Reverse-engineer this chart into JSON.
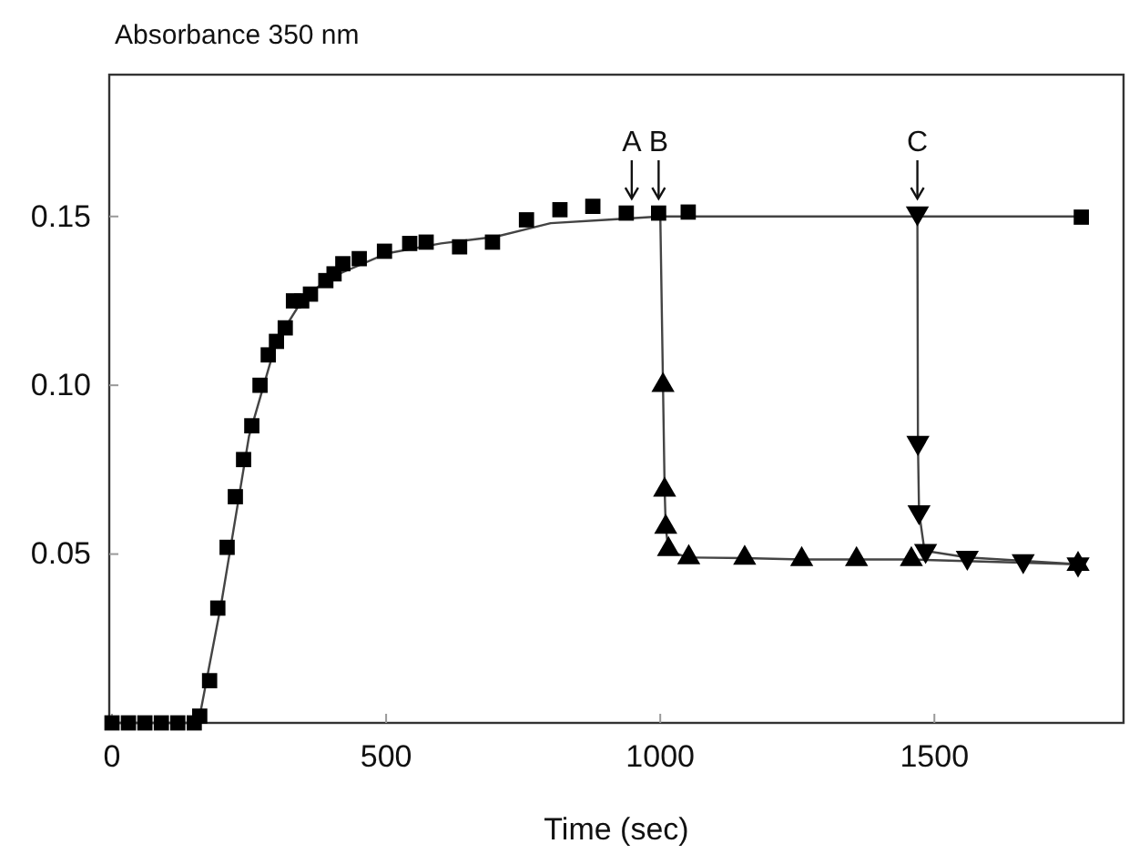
{
  "chart_data": {
    "type": "scatter",
    "ylabel": "Absorbance 350 nm",
    "xlabel": "Time (sec)",
    "xlim": [
      -5,
      1845
    ],
    "ylim": [
      0,
      0.192
    ],
    "xticks": [
      0,
      500,
      1000,
      1500
    ],
    "yticks": [
      {
        "value": 0,
        "label": null
      },
      0.05,
      {
        "value": 0.1,
        "label": "0.10"
      },
      0.15
    ],
    "grid": false,
    "series": [
      {
        "type": "line",
        "color": "#444444",
        "marker": "none",
        "line_style": "solid",
        "x": [
          0,
          150,
          160,
          200,
          250,
          300,
          350,
          400,
          500,
          600,
          700,
          800,
          900,
          1000,
          1768
        ],
        "values": [
          0,
          0,
          0.002,
          0.036,
          0.085,
          0.113,
          0.126,
          0.132,
          0.139,
          0.142,
          0.144,
          0.148,
          0.149,
          0.15,
          0.15
        ]
      },
      {
        "type": "line",
        "color": "#444444",
        "marker": "none",
        "line_style": "solid",
        "x": [
          1000,
          1005,
          1008,
          1010,
          1015,
          1050,
          1154,
          1258,
          1358,
          1458,
          1762
        ],
        "values": [
          0.151,
          0.1,
          0.069,
          0.058,
          0.051,
          0.049,
          0.0488,
          0.0484,
          0.0484,
          0.0484,
          0.047
        ]
      },
      {
        "type": "line",
        "color": "#444444",
        "marker": "none",
        "line_style": "solid",
        "x": [
          1469,
          1470,
          1472,
          1482,
          1560,
          1662,
          1762
        ],
        "values": [
          0.151,
          0.083,
          0.0625,
          0.051,
          0.049,
          0.048,
          0.047
        ]
      },
      {
        "color": "#000000",
        "marker": "square",
        "x": [
          0,
          30,
          60,
          90,
          120,
          150,
          160,
          178,
          193,
          210,
          225,
          240,
          255,
          270,
          285,
          300,
          316,
          331,
          346,
          362,
          390,
          405,
          421,
          451,
          497,
          543,
          573,
          634,
          694,
          756,
          817,
          877,
          938,
          997,
          1051,
          1768
        ],
        "values": [
          0,
          0,
          0,
          0,
          0,
          0,
          0.002,
          0.0125,
          0.034,
          0.052,
          0.067,
          0.078,
          0.088,
          0.1,
          0.109,
          0.113,
          0.117,
          0.125,
          0.125,
          0.127,
          0.131,
          0.133,
          0.136,
          0.1375,
          0.1397,
          0.142,
          0.1424,
          0.141,
          0.1424,
          0.149,
          0.152,
          0.153,
          0.151,
          0.151,
          0.1513,
          0.1498
        ]
      },
      {
        "color": "#000000",
        "marker": "triangle",
        "x": [
          1005,
          1008,
          1010,
          1015,
          1052,
          1154,
          1258,
          1358,
          1458,
          1762
        ],
        "values": [
          0.1,
          0.069,
          0.058,
          0.0514,
          0.049,
          0.0488,
          0.0484,
          0.0484,
          0.0484,
          0.047
        ]
      },
      {
        "color": "#000000",
        "marker": "triangle-down",
        "x": [
          1469,
          1470,
          1472,
          1484,
          1560,
          1662,
          1762
        ],
        "values": [
          0.151,
          0.083,
          0.0625,
          0.051,
          0.049,
          0.048,
          0.047
        ]
      }
    ],
    "annotations": [
      {
        "text": "A",
        "x": 948,
        "y": 0.151
      },
      {
        "text": "B",
        "x": 997,
        "y": 0.151
      },
      {
        "text": "C",
        "x": 1469,
        "y": 0.151
      }
    ]
  }
}
